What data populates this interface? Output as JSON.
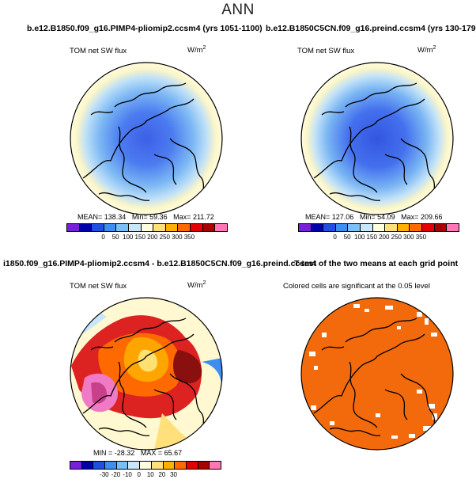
{
  "title": "ANN",
  "panels": [
    {
      "name": "case-panel",
      "title": "b.e12.B1850.f09_g16.PIMP4-pliomip2.ccsm4 (yrs 1051-1100)",
      "label": "TOM net SW flux",
      "units": "W/m",
      "units_exp": "2",
      "stats": {
        "mean_label": "MEAN=",
        "mean": "138.34",
        "min_label": "Min=",
        "min": "59.36",
        "max_label": "Max=",
        "max": "211.72"
      },
      "colorbar": {
        "colors": [
          "#7a1fd8",
          "#0000aa",
          "#1f4fe0",
          "#3e8ef2",
          "#79c0f7",
          "#c9e7fb",
          "#fffee0",
          "#ffe07a",
          "#ffb000",
          "#ff6a00",
          "#e20000",
          "#a80000",
          "#ff77b4"
        ],
        "ticks": [
          "0",
          "50",
          "100",
          "150",
          "200",
          "250",
          "300",
          "350"
        ]
      }
    },
    {
      "name": "control-panel",
      "title": "b.e12.B1850C5CN.f09_g16.preind.ccsm4 (yrs 130-179)",
      "label": "TOM net SW flux",
      "units": "W/m",
      "units_exp": "2",
      "stats": {
        "mean_label": "MEAN=",
        "mean": "127.06",
        "min_label": "Min=",
        "min": "54.09",
        "max_label": "Max=",
        "max": "209.66"
      },
      "colorbar": {
        "colors": [
          "#7a1fd8",
          "#0000aa",
          "#1f4fe0",
          "#3e8ef2",
          "#79c0f7",
          "#c9e7fb",
          "#fffee0",
          "#ffe07a",
          "#ffb000",
          "#ff6a00",
          "#e20000",
          "#a80000",
          "#ff77b4"
        ],
        "ticks": [
          "0",
          "50",
          "100",
          "150",
          "200",
          "250",
          "300",
          "350"
        ]
      }
    },
    {
      "name": "difference-panel",
      "title": "i1850.f09_g16.PIMP4-pliomip2.ccsm4 - b.e12.B1850C5CN.f09_g16.preind.ccsm4",
      "label": "TOM net SW flux",
      "units": "W/m",
      "units_exp": "2",
      "stats": {
        "min_label": "MIN =",
        "min": "-28.32",
        "max_label": "MAX =",
        "max": "65.67"
      },
      "colorbar": {
        "colors": [
          "#7a1fd8",
          "#0000aa",
          "#1f4fe0",
          "#3e8ef2",
          "#79c0f7",
          "#c9e7fb",
          "#fffee0",
          "#ffe07a",
          "#ffb000",
          "#ff6a00",
          "#e20000",
          "#a80000",
          "#ff77b4"
        ],
        "ticks": [
          "-30",
          "-20",
          "-10",
          "0",
          "10",
          "20",
          "30"
        ]
      }
    },
    {
      "name": "ttest-panel",
      "title": "T-test of the two means at each grid point",
      "label": "Colored cells are significant at the 0.05 level"
    }
  ],
  "colors": {
    "cap_blue": "#4c7cf0",
    "mid_blue": "#7cb8f4",
    "light_blue": "#bfe0f8",
    "pale_yellow": "#fcf6c8",
    "sig_orange": "#f26a0c",
    "diff_red": "#dd2222",
    "diff_pink": "#f07ac6",
    "diff_dark": "#8a1010",
    "diff_orange": "#ffa500",
    "diff_yellow": "#ffe070"
  }
}
